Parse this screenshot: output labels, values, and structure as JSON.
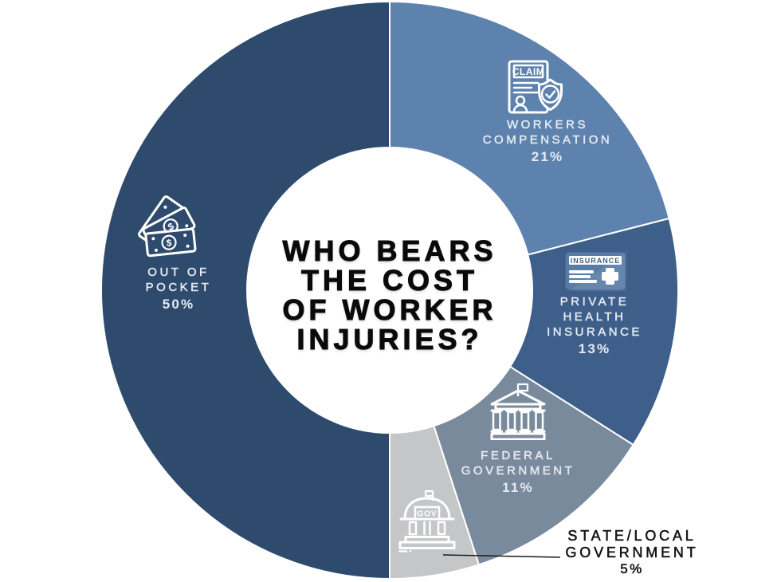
{
  "background": "#ffffff",
  "center_title": {
    "lines": [
      "WHO BEARS",
      "THE COST",
      "OF WORKER",
      "INJURIES?"
    ],
    "color": "#0a0a0a"
  },
  "chart_data": {
    "type": "pie",
    "variant": "donut",
    "title": "WHO BEARS THE COST OF WORKER INJURIES?",
    "direction": "clockwise",
    "start_angle_deg": 0,
    "total": 100,
    "label_placement": "on-slice, smallest slice uses external black callout with leader line",
    "segments": [
      {
        "label": "WORKERS COMPENSATION",
        "label_lines": [
          "WORKERS",
          "COMPENSATION"
        ],
        "value": 21,
        "pct_label": "21%",
        "color": "#5d82ae",
        "icon": "claim-document-shield-icon",
        "icon_text": "CLAIM",
        "label_style": "light-on-slice"
      },
      {
        "label": "PRIVATE HEALTH INSURANCE",
        "label_lines": [
          "PRIVATE",
          "HEALTH",
          "INSURANCE"
        ],
        "value": 13,
        "pct_label": "13%",
        "color": "#3e5f8a",
        "icon": "insurance-card-icon",
        "icon_text": "INSURANCE",
        "label_style": "light-on-slice"
      },
      {
        "label": "FEDERAL GOVERNMENT",
        "label_lines": [
          "FEDERAL",
          "GOVERNMENT"
        ],
        "value": 11,
        "pct_label": "11%",
        "color": "#7a8a9d",
        "icon": "bank-building-icon",
        "icon_text": "",
        "label_style": "light-on-slice"
      },
      {
        "label": "STATE/LOCAL GOVERNMENT",
        "label_lines": [
          "STATE/LOCAL",
          "GOVERNMENT"
        ],
        "value": 5,
        "pct_label": "5%",
        "color": "#c5c6c8",
        "icon": "gov-building-icon",
        "icon_text": "GOV",
        "label_style": "dark-external-callout"
      },
      {
        "label": "OUT OF POCKET",
        "label_lines": [
          "OUT OF",
          "POCKET"
        ],
        "value": 50,
        "pct_label": "50%",
        "color": "#2e4b6e",
        "icon": "money-bills-icon",
        "icon_text": "$",
        "label_style": "light-on-slice"
      }
    ]
  }
}
